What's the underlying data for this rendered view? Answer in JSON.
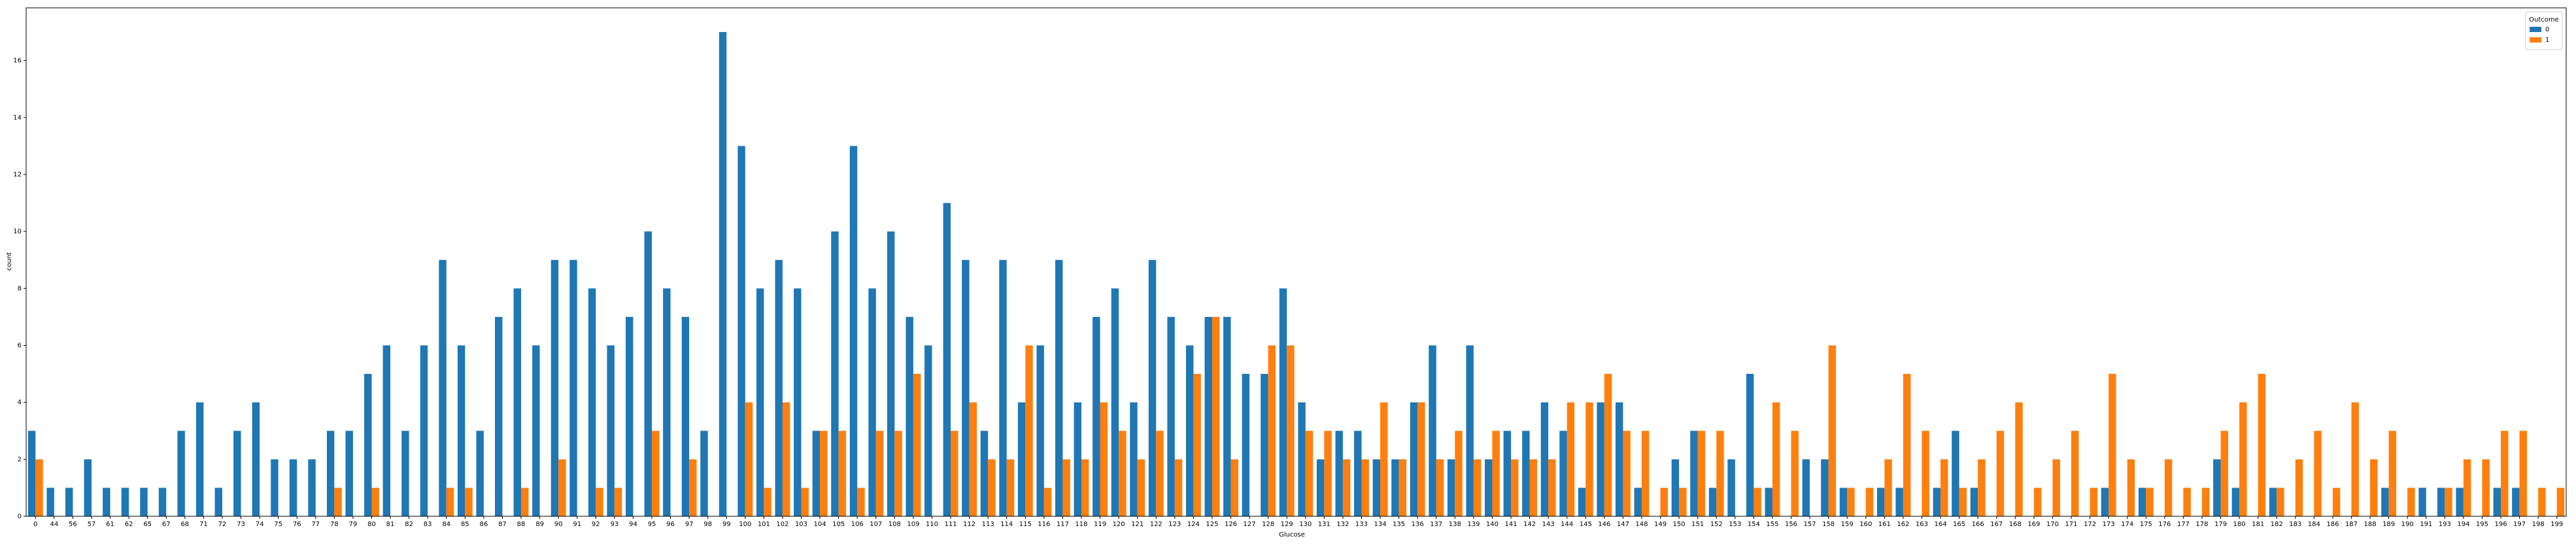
{
  "chart_data": {
    "type": "bar",
    "x_label": "Glucose",
    "y_label": "count",
    "legend_title": "Outcome",
    "legend_position": "upper right",
    "categories": [
      "0",
      "44",
      "56",
      "57",
      "61",
      "62",
      "65",
      "67",
      "68",
      "71",
      "72",
      "73",
      "74",
      "75",
      "76",
      "77",
      "78",
      "79",
      "80",
      "81",
      "82",
      "83",
      "84",
      "85",
      "86",
      "87",
      "88",
      "89",
      "90",
      "91",
      "92",
      "93",
      "94",
      "95",
      "96",
      "97",
      "98",
      "99",
      "100",
      "101",
      "102",
      "103",
      "104",
      "105",
      "106",
      "107",
      "108",
      "109",
      "110",
      "111",
      "112",
      "113",
      "114",
      "115",
      "116",
      "117",
      "118",
      "119",
      "120",
      "121",
      "122",
      "123",
      "124",
      "125",
      "126",
      "127",
      "128",
      "129",
      "130",
      "131",
      "132",
      "133",
      "134",
      "135",
      "136",
      "137",
      "138",
      "139",
      "140",
      "141",
      "142",
      "143",
      "144",
      "145",
      "146",
      "147",
      "148",
      "149",
      "150",
      "151",
      "152",
      "153",
      "154",
      "155",
      "156",
      "157",
      "158",
      "159",
      "160",
      "161",
      "162",
      "163",
      "164",
      "165",
      "166",
      "167",
      "168",
      "169",
      "170",
      "171",
      "172",
      "173",
      "174",
      "175",
      "176",
      "177",
      "178",
      "179",
      "180",
      "181",
      "182",
      "183",
      "184",
      "186",
      "187",
      "188",
      "189",
      "190",
      "191",
      "193",
      "194",
      "195",
      "196",
      "197",
      "198",
      "199"
    ],
    "series": [
      {
        "name": "0",
        "color": "#1f77b4",
        "values": [
          3,
          1,
          1,
          2,
          1,
          1,
          1,
          1,
          3,
          4,
          1,
          3,
          4,
          2,
          2,
          2,
          3,
          3,
          5,
          6,
          3,
          6,
          9,
          6,
          3,
          7,
          8,
          6,
          9,
          9,
          8,
          6,
          7,
          10,
          8,
          7,
          3,
          17,
          13,
          8,
          9,
          8,
          3,
          10,
          13,
          8,
          10,
          7,
          6,
          11,
          9,
          3,
          9,
          4,
          6,
          9,
          4,
          7,
          8,
          4,
          9,
          7,
          6,
          7,
          7,
          5,
          5,
          8,
          4,
          2,
          3,
          3,
          2,
          2,
          4,
          6,
          2,
          6,
          2,
          3,
          3,
          4,
          3,
          1,
          4,
          4,
          1,
          0,
          2,
          3,
          1,
          2,
          5,
          1,
          0,
          2,
          2,
          1,
          0,
          1,
          1,
          0,
          1,
          3,
          1,
          0,
          0,
          0,
          0,
          0,
          0,
          1,
          0,
          1,
          0,
          0,
          0,
          2,
          1,
          0,
          1,
          0,
          0,
          0,
          0,
          0,
          1,
          0,
          1,
          1,
          1,
          0,
          1,
          1,
          0,
          0
        ]
      },
      {
        "name": "1",
        "color": "#ff7f0e",
        "values": [
          2,
          0,
          0,
          0,
          0,
          0,
          0,
          0,
          0,
          0,
          0,
          0,
          0,
          0,
          0,
          0,
          1,
          0,
          1,
          0,
          0,
          0,
          1,
          1,
          0,
          0,
          1,
          0,
          2,
          0,
          1,
          1,
          0,
          3,
          0,
          2,
          0,
          0,
          4,
          1,
          4,
          1,
          3,
          3,
          1,
          3,
          3,
          5,
          0,
          3,
          4,
          2,
          2,
          6,
          1,
          2,
          2,
          4,
          3,
          2,
          3,
          2,
          5,
          7,
          2,
          0,
          6,
          6,
          3,
          3,
          2,
          2,
          4,
          2,
          4,
          2,
          3,
          2,
          3,
          2,
          2,
          2,
          4,
          4,
          5,
          3,
          3,
          1,
          1,
          3,
          3,
          0,
          1,
          4,
          3,
          0,
          6,
          1,
          1,
          2,
          5,
          3,
          2,
          1,
          2,
          3,
          4,
          1,
          2,
          3,
          1,
          5,
          2,
          1,
          2,
          1,
          1,
          3,
          4,
          5,
          1,
          2,
          3,
          1,
          4,
          2,
          3,
          1,
          0,
          1,
          2,
          2,
          3,
          3,
          1,
          1
        ]
      }
    ],
    "ylim": [
      0,
      17.85
    ],
    "yticks": [
      0,
      2,
      4,
      6,
      8,
      10,
      12,
      14,
      16
    ]
  }
}
